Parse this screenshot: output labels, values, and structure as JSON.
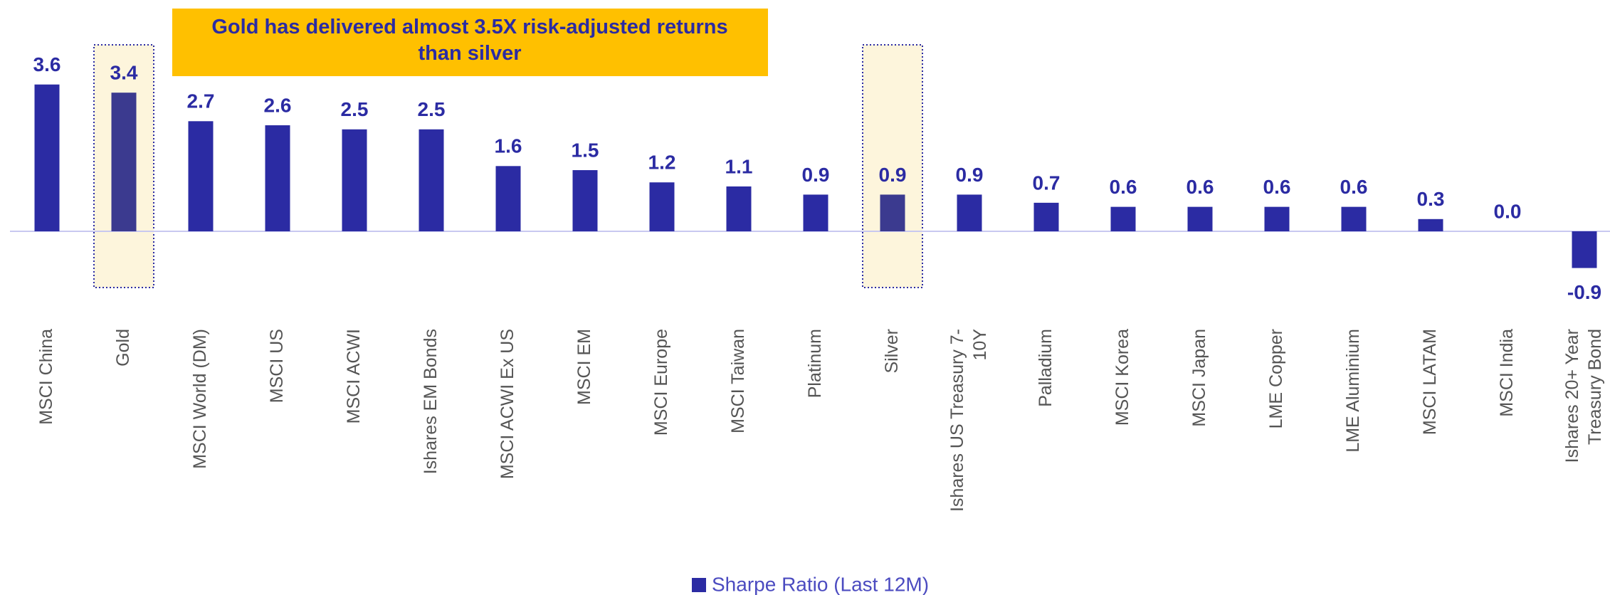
{
  "chart_data": {
    "type": "bar",
    "annotation": "Gold has delivered almost 3.5X risk-adjusted returns than silver",
    "categories": [
      "MSCI China",
      "Gold",
      "MSCI World (DM)",
      "MSCI US",
      "MSCI ACWI",
      "Ishares EM Bonds",
      "MSCI ACWI Ex US",
      "MSCI EM",
      "MSCI Europe",
      "MSCI Taiwan",
      "Platinum",
      "Silver",
      "Ishares US Treasury 7-10Y",
      "Palladium",
      "MSCI Korea",
      "MSCI Japan",
      "LME Copper",
      "LME Aluminium",
      "MSCI LATAM",
      "MSCI India",
      "Ishares 20+ Year Treasury Bond"
    ],
    "series": [
      {
        "name": "Sharpe Ratio (Last 12M)",
        "color": "#2b2ba3",
        "values": [
          3.6,
          3.4,
          2.7,
          2.6,
          2.5,
          2.5,
          1.6,
          1.5,
          1.2,
          1.1,
          0.9,
          0.9,
          0.9,
          0.7,
          0.6,
          0.6,
          0.6,
          0.6,
          0.3,
          0.0,
          -0.9
        ],
        "value_labels": [
          "3.6",
          "3.4",
          "2.7",
          "2.6",
          "2.5",
          "2.5",
          "1.6",
          "1.5",
          "1.2",
          "1.1",
          "0.9",
          "0.9",
          "0.9",
          "0.7",
          "0.6",
          "0.6",
          "0.6",
          "0.6",
          "0.3",
          "0.0",
          "-0.9"
        ]
      }
    ],
    "highlight_categories": [
      "Gold",
      "Silver"
    ],
    "highlight_color": "#3b3a8f",
    "legend": "bottom"
  }
}
